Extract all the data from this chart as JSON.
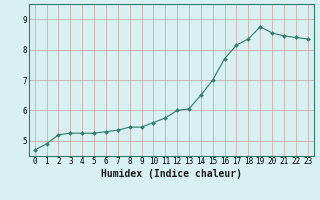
{
  "x": [
    0,
    1,
    2,
    3,
    4,
    5,
    6,
    7,
    8,
    9,
    10,
    11,
    12,
    13,
    14,
    15,
    16,
    17,
    18,
    19,
    20,
    21,
    22,
    23
  ],
  "y": [
    4.7,
    4.9,
    5.2,
    5.25,
    5.25,
    5.25,
    5.3,
    5.35,
    5.45,
    5.45,
    5.6,
    5.75,
    6.0,
    6.05,
    6.5,
    7.0,
    7.7,
    8.15,
    8.35,
    8.75,
    8.55,
    8.45,
    8.4,
    8.35
  ],
  "xlabel": "Humidex (Indice chaleur)",
  "xlim": [
    -0.5,
    23.5
  ],
  "ylim": [
    4.5,
    9.5
  ],
  "yticks": [
    5,
    6,
    7,
    8,
    9
  ],
  "xticks": [
    0,
    1,
    2,
    3,
    4,
    5,
    6,
    7,
    8,
    9,
    10,
    11,
    12,
    13,
    14,
    15,
    16,
    17,
    18,
    19,
    20,
    21,
    22,
    23
  ],
  "line_color": "#2d7d6b",
  "bg_color": "#d8f0f0",
  "grid_color": "#c8a0a0",
  "tick_label_fontsize": 5.5,
  "xlabel_fontsize": 7,
  "marker_size": 2.0
}
